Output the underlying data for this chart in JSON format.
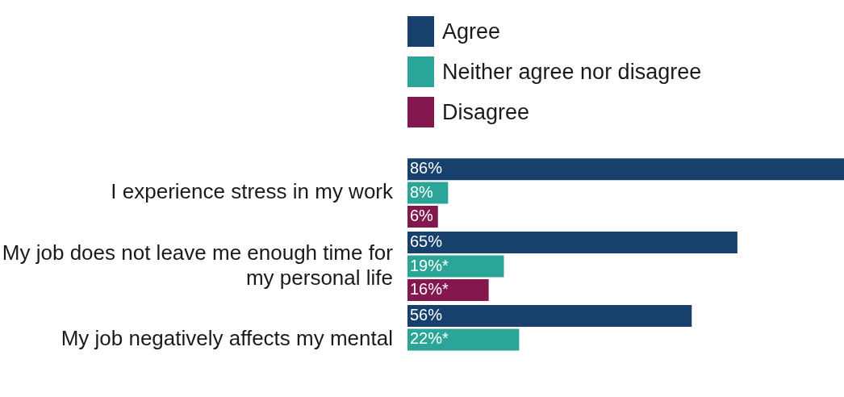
{
  "chart_data": {
    "type": "bar",
    "orientation": "horizontal",
    "legend": "top",
    "categories": [
      "I experience stress in my work",
      "My job does not leave me enough time for my personal life",
      "My job negatively affects my mental"
    ],
    "series": [
      {
        "name": "Agree",
        "color": "#17406d",
        "values": [
          86,
          65,
          56
        ],
        "value_labels": [
          "86%",
          "65%",
          "56%"
        ]
      },
      {
        "name": "Neither agree nor disagree",
        "color": "#2ba598",
        "values": [
          8,
          19,
          22
        ],
        "value_labels": [
          "8%",
          "19%*",
          "22%*"
        ]
      },
      {
        "name": "Disagree",
        "color": "#82184e",
        "values": [
          6,
          16,
          null
        ],
        "value_labels": [
          "6%",
          "16%*",
          null
        ]
      }
    ]
  }
}
